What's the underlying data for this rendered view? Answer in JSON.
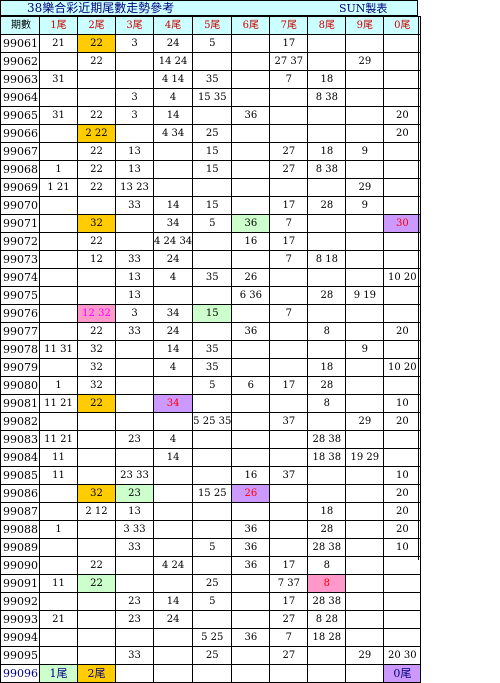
{
  "title": {
    "main": "38樂合彩近期尾數走勢參考",
    "author": "SUN製表"
  },
  "header": [
    "期數",
    "1尾",
    "2尾",
    "3尾",
    "4尾",
    "5尾",
    "6尾",
    "7尾",
    "8尾",
    "9尾",
    "0尾"
  ],
  "rows": [
    {
      "period": "99061",
      "c": [
        "21",
        "22",
        "3",
        "24",
        "5",
        "",
        "17",
        "",
        "",
        ""
      ],
      "hl": {
        "1": "orange"
      }
    },
    {
      "period": "99062",
      "c": [
        "",
        "22",
        "",
        "14 24",
        "",
        "",
        "27 37",
        "",
        "29",
        ""
      ],
      "hl": {}
    },
    {
      "period": "99063",
      "c": [
        "31",
        "",
        "",
        "4 14",
        "35",
        "",
        "7",
        "18",
        "",
        ""
      ],
      "hl": {}
    },
    {
      "period": "99064",
      "c": [
        "",
        "",
        "3",
        "4",
        "15 35",
        "",
        "",
        "8 38",
        "",
        ""
      ],
      "hl": {}
    },
    {
      "period": "99065",
      "c": [
        "31",
        "22",
        "3",
        "14",
        "",
        "36",
        "",
        "",
        "",
        "20"
      ],
      "hl": {}
    },
    {
      "period": "99066",
      "c": [
        "",
        "2 22",
        "",
        "4 34",
        "25",
        "",
        "",
        "",
        "",
        "20"
      ],
      "hl": {
        "1": "orange"
      }
    },
    {
      "period": "99067",
      "c": [
        "",
        "22",
        "13",
        "",
        "15",
        "",
        "27",
        "18",
        "9",
        ""
      ],
      "hl": {}
    },
    {
      "period": "99068",
      "c": [
        "1",
        "22",
        "13",
        "",
        "15",
        "",
        "27",
        "8 38",
        "",
        ""
      ],
      "hl": {}
    },
    {
      "period": "99069",
      "c": [
        "1 21",
        "22",
        "13 23",
        "",
        "",
        "",
        "",
        "",
        "29",
        ""
      ],
      "hl": {}
    },
    {
      "period": "99070",
      "c": [
        "",
        "",
        "33",
        "14",
        "15",
        "",
        "17",
        "28",
        "9",
        ""
      ],
      "hl": {}
    },
    {
      "period": "99071",
      "c": [
        "",
        "32",
        "",
        "34",
        "5",
        "36",
        "7",
        "",
        "",
        "30"
      ],
      "hl": {
        "1": "orange",
        "5": "green",
        "9": "purple-red"
      }
    },
    {
      "period": "99072",
      "c": [
        "",
        "22",
        "",
        "4 24 34",
        "",
        "16",
        "17",
        "",
        "",
        ""
      ],
      "hl": {}
    },
    {
      "period": "99073",
      "c": [
        "",
        "12",
        "33",
        "24",
        "",
        "",
        "7",
        "8 18",
        "",
        ""
      ],
      "hl": {}
    },
    {
      "period": "99074",
      "c": [
        "",
        "",
        "13",
        "4",
        "35",
        "26",
        "",
        "",
        "",
        "10 20"
      ],
      "hl": {}
    },
    {
      "period": "99075",
      "c": [
        "",
        "",
        "13",
        "",
        "",
        "6 36",
        "",
        "28",
        "9 19",
        ""
      ],
      "hl": {}
    },
    {
      "period": "99076",
      "c": [
        "",
        "12 32",
        "3",
        "34",
        "15",
        "",
        "7",
        "",
        "",
        ""
      ],
      "hl": {
        "1": "pink",
        "4": "green"
      }
    },
    {
      "period": "99077",
      "c": [
        "",
        "22",
        "33",
        "24",
        "",
        "36",
        "",
        "8",
        "",
        "20"
      ],
      "hl": {}
    },
    {
      "period": "99078",
      "c": [
        "11 31",
        "32",
        "",
        "14",
        "35",
        "",
        "",
        "",
        "9",
        ""
      ],
      "hl": {}
    },
    {
      "period": "99079",
      "c": [
        "",
        "32",
        "",
        "4",
        "35",
        "",
        "",
        "18",
        "",
        "10 20"
      ],
      "hl": {}
    },
    {
      "period": "99080",
      "c": [
        "1",
        "32",
        "",
        "",
        "5",
        "6",
        "17",
        "28",
        "",
        ""
      ],
      "hl": {}
    },
    {
      "period": "99081",
      "c": [
        "11 21",
        "22",
        "",
        "34",
        "",
        "",
        "",
        "8",
        "",
        "10"
      ],
      "hl": {
        "1": "orange",
        "3": "purple-red"
      }
    },
    {
      "period": "99082",
      "c": [
        "",
        "",
        "",
        "",
        "5 25 35",
        "",
        "37",
        "",
        "29",
        "20"
      ],
      "hl": {}
    },
    {
      "period": "99083",
      "c": [
        "11 21",
        "",
        "23",
        "4",
        "",
        "",
        "",
        "28 38",
        "",
        ""
      ],
      "hl": {}
    },
    {
      "period": "99084",
      "c": [
        "11",
        "",
        "",
        "14",
        "",
        "",
        "",
        "18 38",
        "19 29",
        ""
      ],
      "hl": {}
    },
    {
      "period": "99085",
      "c": [
        "11",
        "",
        "23 33",
        "",
        "",
        "16",
        "37",
        "",
        "",
        "10"
      ],
      "hl": {}
    },
    {
      "period": "99086",
      "c": [
        "",
        "32",
        "23",
        "",
        "15 25",
        "26",
        "",
        "",
        "",
        "20"
      ],
      "hl": {
        "1": "orange",
        "2": "green",
        "5": "purple-white"
      }
    },
    {
      "period": "99087",
      "c": [
        "",
        "2 12",
        "13",
        "",
        "",
        "",
        "",
        "18",
        "",
        "20"
      ],
      "hl": {}
    },
    {
      "period": "99088",
      "c": [
        "1",
        "",
        "3 33",
        "",
        "",
        "36",
        "",
        "28",
        "",
        "20"
      ],
      "hl": {}
    },
    {
      "period": "99089",
      "c": [
        "",
        "",
        "33",
        "",
        "5",
        "36",
        "",
        "28 38",
        "",
        "10"
      ],
      "hl": {}
    },
    {
      "period": "99090",
      "c": [
        "",
        "22",
        "",
        "4 24",
        "",
        "36",
        "17",
        "8",
        "",
        ""
      ],
      "hl": {}
    },
    {
      "period": "99091",
      "c": [
        "11",
        "22",
        "",
        "",
        "25",
        "",
        "7 37",
        "8",
        "",
        ""
      ],
      "hl": {
        "1": "green",
        "7": "pink-red"
      }
    },
    {
      "period": "99092",
      "c": [
        "",
        "",
        "23",
        "14",
        "5",
        "",
        "17",
        "28 38",
        "",
        ""
      ],
      "hl": {}
    },
    {
      "period": "99093",
      "c": [
        "21",
        "",
        "23",
        "24",
        "",
        "",
        "27",
        "8 28",
        "",
        ""
      ],
      "hl": {}
    },
    {
      "period": "99094",
      "c": [
        "",
        "",
        "",
        "",
        "5 25",
        "36",
        "7",
        "18 28",
        "",
        ""
      ],
      "hl": {}
    },
    {
      "period": "99095",
      "c": [
        "",
        "",
        "33",
        "",
        "25",
        "",
        "27",
        "",
        "29",
        "20 30"
      ],
      "hl": {}
    }
  ],
  "footer": {
    "period": "99096",
    "c": [
      "1尾",
      "2尾",
      "",
      "",
      "",
      "",
      "",
      "",
      "",
      "0尾"
    ],
    "hl": {
      "0": "green",
      "1": "orange",
      "9": "purple"
    }
  },
  "colors": {
    "header_bg": "#ccffff",
    "orange": "#ffcc00",
    "green": "#ccffcc",
    "purple": "#cc99ff",
    "pink": "#ff99cc",
    "red_text": "#ff0000",
    "magenta_text": "#ff00ff"
  }
}
